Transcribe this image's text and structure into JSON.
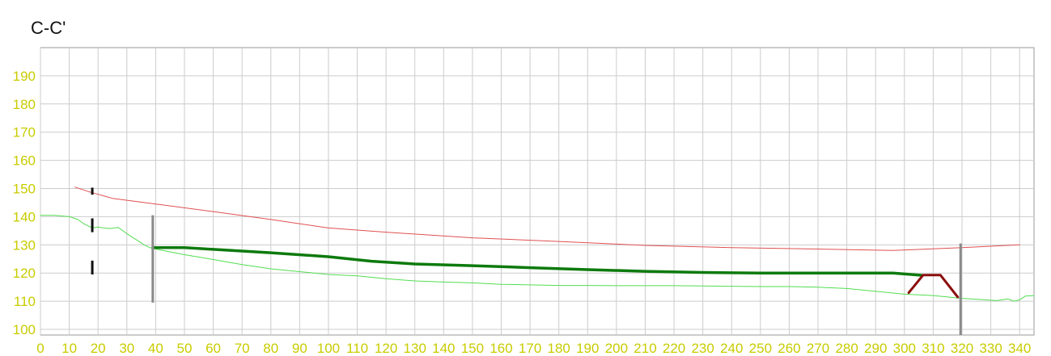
{
  "chart_data": {
    "type": "line",
    "title": "C-C'",
    "xlabel": "",
    "ylabel": "",
    "xlim": [
      0,
      345
    ],
    "ylim": [
      98,
      200
    ],
    "grid": true,
    "x_ticks": [
      0,
      10,
      20,
      30,
      40,
      50,
      60,
      70,
      80,
      90,
      100,
      110,
      120,
      130,
      140,
      150,
      160,
      170,
      180,
      190,
      200,
      210,
      220,
      230,
      240,
      250,
      260,
      270,
      280,
      290,
      300,
      310,
      320,
      330,
      340
    ],
    "y_ticks": [
      100,
      110,
      120,
      130,
      140,
      150,
      160,
      170,
      180,
      190
    ],
    "tick_color": "#c9cc00",
    "series": [
      {
        "color": "#e05050",
        "width": 1,
        "points": [
          [
            12,
            150.5
          ],
          [
            17,
            148.8
          ],
          [
            25,
            146.5
          ],
          [
            40,
            144.5
          ],
          [
            60,
            141.8
          ],
          [
            80,
            139
          ],
          [
            100,
            136
          ],
          [
            120,
            134.5
          ],
          [
            150,
            132.5
          ],
          [
            180,
            131.2
          ],
          [
            210,
            129.8
          ],
          [
            240,
            129
          ],
          [
            270,
            128.5
          ],
          [
            296,
            128
          ],
          [
            320,
            129
          ],
          [
            340,
            130
          ]
        ]
      },
      {
        "color": "#52dd52",
        "width": 1,
        "points": [
          [
            0,
            140.5
          ],
          [
            5,
            140.5
          ],
          [
            10,
            140
          ],
          [
            13,
            139
          ],
          [
            15,
            137.5
          ],
          [
            18,
            136
          ],
          [
            20,
            136.3
          ],
          [
            22,
            136
          ],
          [
            24,
            135.8
          ],
          [
            27,
            136.2
          ],
          [
            30,
            134
          ],
          [
            33,
            132
          ],
          [
            36,
            130
          ],
          [
            38,
            129
          ],
          [
            40,
            128.5
          ],
          [
            50,
            126.5
          ],
          [
            60,
            124.8
          ],
          [
            70,
            123
          ],
          [
            80,
            121.5
          ],
          [
            90,
            120.5
          ],
          [
            100,
            119.5
          ],
          [
            110,
            119
          ],
          [
            120,
            118
          ],
          [
            130,
            117.2
          ],
          [
            140,
            116.8
          ],
          [
            150,
            116.5
          ],
          [
            160,
            116
          ],
          [
            170,
            115.8
          ],
          [
            180,
            115.6
          ],
          [
            190,
            115.6
          ],
          [
            200,
            115.5
          ],
          [
            210,
            115.5
          ],
          [
            220,
            115.5
          ],
          [
            230,
            115.4
          ],
          [
            240,
            115.3
          ],
          [
            250,
            115.2
          ],
          [
            260,
            115.2
          ],
          [
            270,
            115
          ],
          [
            280,
            114.5
          ],
          [
            290,
            113.5
          ],
          [
            300,
            112.5
          ],
          [
            310,
            112
          ],
          [
            320,
            111
          ],
          [
            328,
            110.5
          ],
          [
            332,
            110.2
          ],
          [
            336,
            110.8
          ],
          [
            338,
            110
          ],
          [
            340,
            110.5
          ],
          [
            342,
            111.8
          ],
          [
            345,
            112
          ]
        ]
      },
      {
        "color": "#0d7a0d",
        "width": 3.5,
        "points": [
          [
            39,
            129
          ],
          [
            50,
            129
          ],
          [
            60,
            128.4
          ],
          [
            80,
            127.2
          ],
          [
            100,
            125.8
          ],
          [
            115,
            124.2
          ],
          [
            130,
            123.2
          ],
          [
            150,
            122.6
          ],
          [
            170,
            121.9
          ],
          [
            190,
            121.2
          ],
          [
            210,
            120.6
          ],
          [
            230,
            120.2
          ],
          [
            250,
            120
          ],
          [
            270,
            120
          ],
          [
            296,
            120
          ],
          [
            306,
            119.2
          ]
        ]
      },
      {
        "color": "#8b0d0d",
        "width": 3,
        "points": [
          [
            301.5,
            113
          ],
          [
            306.5,
            119.3
          ],
          [
            312.5,
            119.3
          ],
          [
            318.5,
            111.5
          ]
        ]
      }
    ],
    "vertical_markers": [
      {
        "x": 39,
        "y0": 109.5,
        "y1": 140.5,
        "color": "#8a8a8a",
        "width": 3
      },
      {
        "x": 319.5,
        "y0": 98,
        "y1": 130.5,
        "color": "#8a8a8a",
        "width": 3
      }
    ],
    "dash_markers": [
      {
        "x": 18,
        "y0": 147.8,
        "y1": 150.3,
        "color": "#111111",
        "width": 3
      },
      {
        "x": 18,
        "y0": 134.5,
        "y1": 139.4,
        "color": "#111111",
        "width": 3
      },
      {
        "x": 18,
        "y0": 119.5,
        "y1": 124.4,
        "color": "#111111",
        "width": 3
      }
    ]
  }
}
